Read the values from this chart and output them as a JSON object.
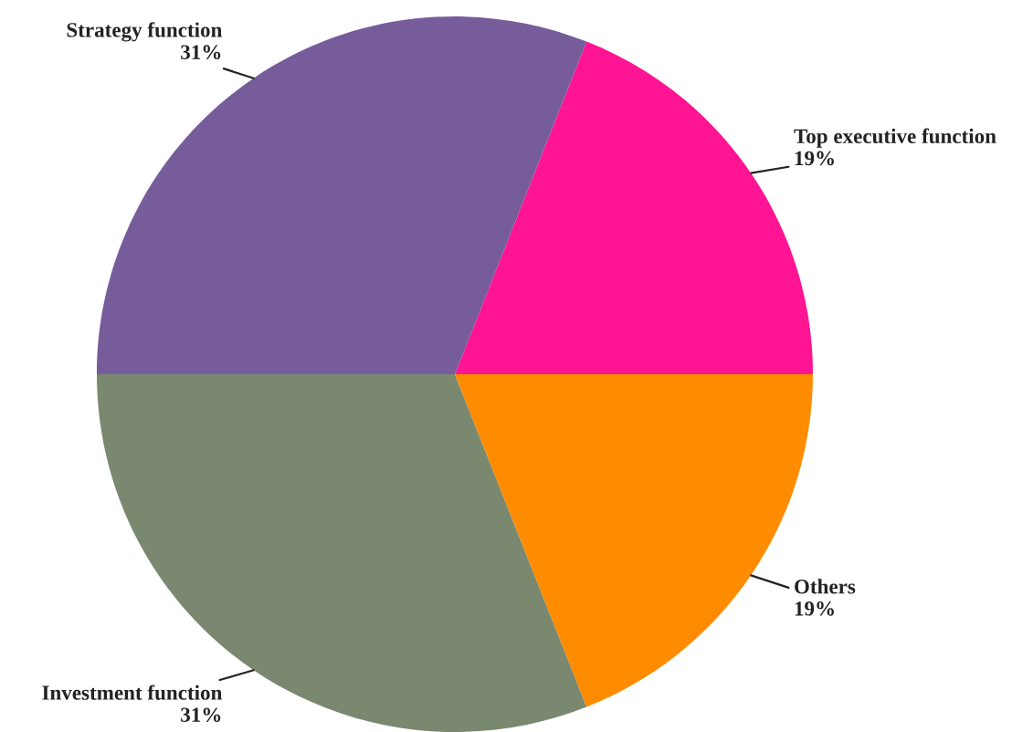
{
  "chart_data": {
    "type": "pie",
    "categories": [
      "Top executive function",
      "Strategy function",
      "Investment function",
      "Others"
    ],
    "values": [
      19,
      31,
      31,
      19
    ],
    "colors": [
      "#ff1493",
      "#775c9b",
      "#7a8870",
      "#ff8c00"
    ],
    "value_labels": [
      "19%",
      "31%",
      "31%",
      "19%"
    ]
  }
}
